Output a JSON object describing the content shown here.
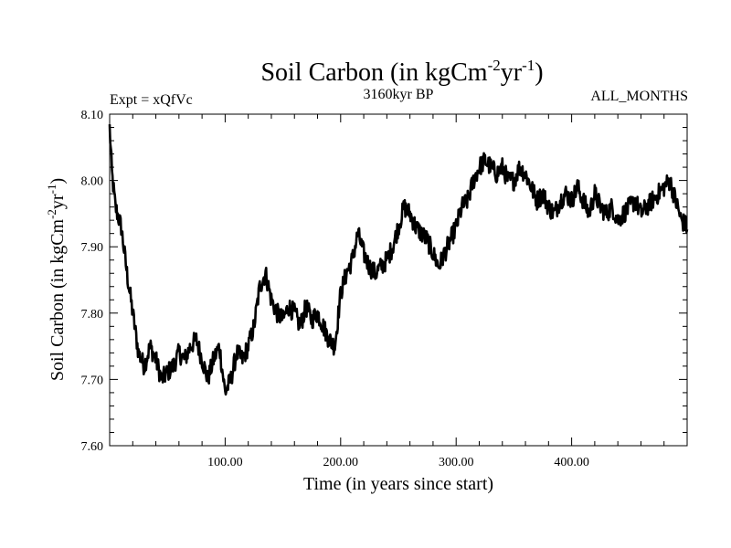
{
  "chart_data": {
    "type": "line",
    "title": "Soil Carbon (in kgCm",
    "title_sup1": "-2",
    "title_mid": "yr",
    "title_sup2": "-1",
    "title_end": ")",
    "experiment_label": "Expt = xQfVc",
    "period_label": "3160kyr BP",
    "months_label": "ALL_MONTHS",
    "xlabel": "Time (in years since start)",
    "ylabel_main": "Soil Carbon (in kgCm",
    "ylabel_sup1": "-2",
    "ylabel_mid": "yr",
    "ylabel_sup2": "-1",
    "ylabel_end": ")",
    "xlim": [
      0,
      500
    ],
    "ylim": [
      7.6,
      8.1
    ],
    "x_ticks": [
      100,
      200,
      300,
      400
    ],
    "x_tick_labels": [
      "100.00",
      "200.00",
      "300.00",
      "400.00"
    ],
    "y_ticks": [
      7.6,
      7.7,
      7.8,
      7.9,
      8.0,
      8.1
    ],
    "y_tick_labels": [
      "7.60",
      "7.70",
      "7.80",
      "7.90",
      "8.00",
      "8.10"
    ],
    "series": [
      {
        "name": "Soil Carbon",
        "x": [
          0,
          2,
          5,
          10,
          15,
          20,
          25,
          30,
          35,
          40,
          45,
          50,
          55,
          60,
          65,
          70,
          75,
          80,
          85,
          90,
          95,
          100,
          105,
          110,
          115,
          120,
          125,
          130,
          135,
          140,
          145,
          150,
          155,
          160,
          165,
          170,
          175,
          180,
          185,
          190,
          195,
          200,
          205,
          210,
          215,
          220,
          225,
          230,
          235,
          240,
          245,
          250,
          255,
          260,
          265,
          270,
          275,
          280,
          285,
          290,
          295,
          300,
          305,
          310,
          315,
          320,
          325,
          330,
          335,
          340,
          345,
          350,
          355,
          360,
          365,
          370,
          375,
          380,
          385,
          390,
          395,
          400,
          405,
          410,
          415,
          420,
          425,
          430,
          435,
          440,
          445,
          450,
          455,
          460,
          465,
          470,
          475,
          480,
          485,
          490,
          495,
          500
        ],
        "values": [
          8.08,
          8.01,
          7.96,
          7.93,
          7.86,
          7.8,
          7.74,
          7.72,
          7.75,
          7.73,
          7.7,
          7.71,
          7.72,
          7.74,
          7.73,
          7.75,
          7.76,
          7.73,
          7.7,
          7.73,
          7.75,
          7.68,
          7.7,
          7.74,
          7.73,
          7.75,
          7.78,
          7.84,
          7.86,
          7.82,
          7.8,
          7.79,
          7.81,
          7.8,
          7.78,
          7.81,
          7.79,
          7.8,
          7.78,
          7.76,
          7.75,
          7.83,
          7.86,
          7.88,
          7.92,
          7.89,
          7.87,
          7.86,
          7.87,
          7.88,
          7.9,
          7.93,
          7.96,
          7.95,
          7.93,
          7.92,
          7.91,
          7.89,
          7.87,
          7.89,
          7.91,
          7.93,
          7.96,
          7.97,
          8.0,
          8.02,
          8.03,
          8.02,
          8.01,
          8.02,
          8.0,
          8.0,
          8.02,
          8.01,
          7.99,
          7.97,
          7.98,
          7.96,
          7.95,
          7.97,
          7.98,
          7.97,
          7.99,
          7.97,
          7.95,
          7.98,
          7.96,
          7.95,
          7.96,
          7.94,
          7.95,
          7.96,
          7.97,
          7.95,
          7.96,
          7.97,
          7.98,
          7.99,
          8.0,
          7.97,
          7.94,
          7.93
        ]
      }
    ]
  }
}
